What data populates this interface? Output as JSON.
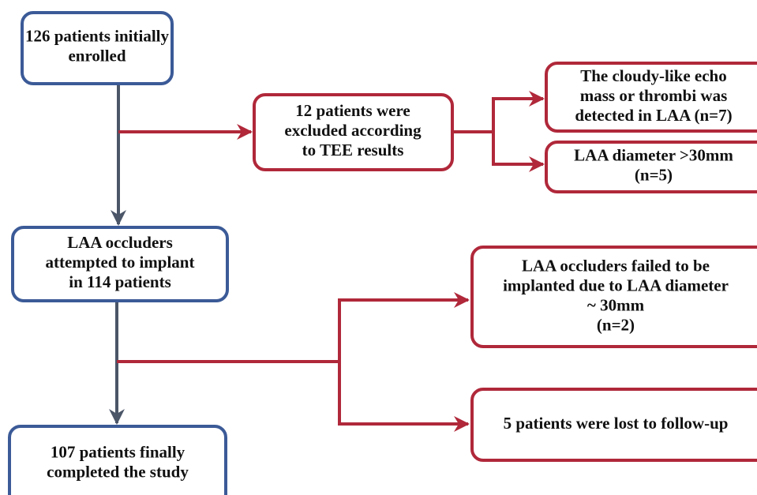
{
  "nodes": [
    {
      "lines": [
        "126 patients initially",
        "enrolled"
      ]
    },
    {
      "lines": [
        "12 patients were",
        "excluded according",
        "to TEE results"
      ]
    },
    {
      "lines": [
        "The cloudy-like echo",
        "mass or thrombi was",
        "detected in LAA (n=7)"
      ]
    },
    {
      "lines": [
        "LAA diameter >30mm",
        "(n=5)"
      ]
    },
    {
      "lines": [
        "LAA occluders",
        "attempted to implant",
        "in 114 patients"
      ]
    },
    {
      "lines": [
        "LAA occluders failed  to be",
        "implanted due to LAA diameter",
        "~ 30mm",
        "(n=2)"
      ]
    },
    {
      "lines": [
        "5 patients were lost to follow-up"
      ]
    },
    {
      "lines": [
        "107 patients finally",
        "completed the study"
      ]
    }
  ]
}
